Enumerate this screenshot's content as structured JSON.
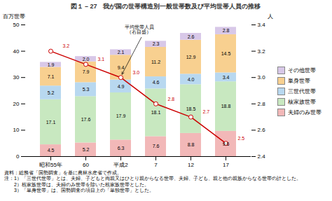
{
  "chart_data": {
    "type": "bar",
    "title": "図１－27　我が国の世帯構造別一般世帯数及び平均世帯人員の推移",
    "categories": [
      "昭和55年",
      "60",
      "平成2",
      "7",
      "12",
      "17"
    ],
    "stacked": true,
    "data_labels": true,
    "grid": false,
    "legend": "right",
    "ylabel": "百万世帯",
    "y2label": "人",
    "ylim": [
      0,
      50
    ],
    "yticks": [
      0,
      10,
      20,
      30,
      40,
      50
    ],
    "y2lim": [
      2.4,
      3.4
    ],
    "y2ticks": [
      2.4,
      2.6,
      2.8,
      {
        "value": 3.0,
        "label": "3.0"
      },
      3.2,
      3.4
    ],
    "series": [
      {
        "name": "夫婦のみ世帯",
        "color": "#f2b8b8",
        "values": [
          4.5,
          5.2,
          6.3,
          7.6,
          8.8,
          9.6
        ]
      },
      {
        "name": "核家族世帯",
        "color": "#c8e8c0",
        "values": [
          17.1,
          17.6,
          17.9,
          18.1,
          18.5,
          18.8
        ]
      },
      {
        "name": "三世代世帯",
        "color": "#b8d8f0",
        "values": [
          5.2,
          5.3,
          4.9,
          4.6,
          4.0,
          3.4
        ],
        "value_labels": [
          "5.2",
          "5.3",
          "4.9",
          "4.6",
          "4.0",
          "3.4"
        ]
      },
      {
        "name": "単身世帯",
        "color": "#f8d090",
        "values": [
          7.1,
          7.9,
          9.4,
          11.2,
          12.9,
          14.5
        ]
      },
      {
        "name": "その他世帯",
        "color": "#d8c8e8",
        "values": [
          1.9,
          2.0,
          2.1,
          2.3,
          2.6,
          2.8
        ],
        "value_labels": [
          "1.9",
          "2.0",
          "2.1",
          "2.3",
          "2.6",
          "2.8"
        ]
      },
      {
        "type": "line",
        "axis": "y2",
        "color": "#cc0000",
        "marker": "circle",
        "values": [
          3.2,
          3.1,
          3.0,
          2.8,
          2.7,
          2.5
        ],
        "value_labels": [
          "3.2",
          "3.1",
          "3.0",
          "2.8",
          "2.7",
          "2.5"
        ]
      }
    ],
    "annotations": [
      {
        "text": "平均世帯人員\n（右目盛）",
        "x": "平成2"
      }
    ],
    "notes": [
      "資料：総務省「国勢調査」を基に農林水産省で作成。",
      "注：1）「三世代世帯」とは、夫婦、子どもと両親又はひとり親からなる世帯、夫婦、子ども、親と他の親族からなる世帯の計とした。",
      "　　2）核家族世帯は、夫婦のみ世帯を除いた核家族世帯とした。",
      "　　3）「単身世帯」は、国勢調査の項目上の「単独世帯」とした。"
    ]
  }
}
